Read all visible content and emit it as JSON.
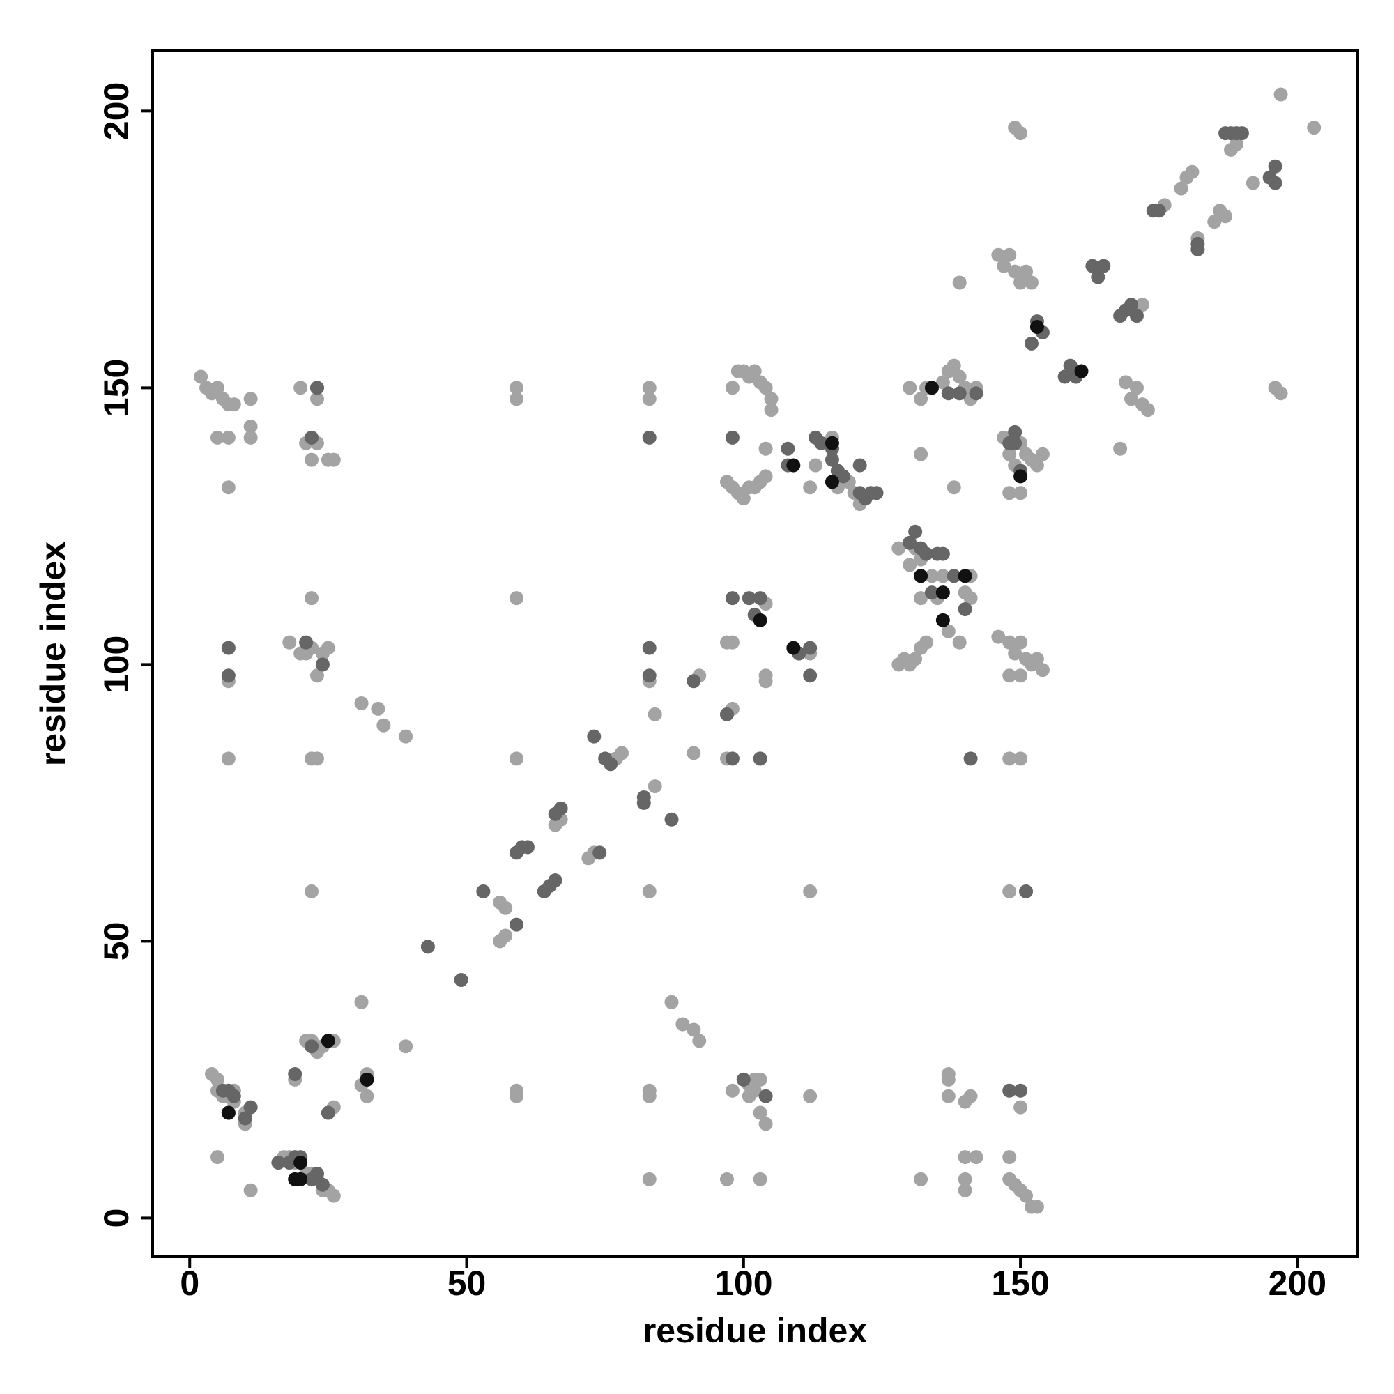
{
  "chart_data": {
    "type": "scatter",
    "x_label": "residue index",
    "y_label": "residue index",
    "xlim": [
      -6.7,
      210.9
    ],
    "ylim": [
      -7,
      211
    ],
    "xticks": [
      0,
      50,
      100,
      150,
      200
    ],
    "yticks": [
      0,
      50,
      100,
      150,
      200
    ],
    "series": [
      {
        "color": "#a3a3a3",
        "x": [
          4,
          5,
          5,
          6,
          7,
          8,
          8,
          10,
          10,
          5,
          11,
          17,
          18,
          19,
          21,
          22,
          23,
          24,
          25,
          26,
          19,
          21,
          22,
          23,
          24,
          26,
          26,
          31,
          32,
          32,
          31,
          39,
          56,
          57,
          56,
          57,
          59,
          59,
          59,
          59,
          59,
          59,
          66,
          67,
          72,
          73,
          77,
          78,
          83,
          83,
          83,
          83,
          83,
          83,
          83,
          84,
          84,
          87,
          89,
          91,
          92,
          91,
          92,
          97,
          98,
          97,
          98,
          98,
          97,
          100,
          101,
          101,
          102,
          102,
          103,
          103,
          104,
          103,
          104,
          104,
          103,
          97,
          98,
          99,
          100,
          101,
          102,
          103,
          104,
          104,
          98,
          99,
          100,
          101,
          102,
          103,
          104,
          105,
          105,
          110,
          112,
          112,
          112,
          112,
          113,
          116,
          117,
          119,
          120,
          121,
          104,
          103,
          128,
          129,
          130,
          131,
          132,
          133,
          132,
          134,
          135,
          136,
          137,
          139,
          140,
          141,
          141,
          128,
          130,
          131,
          132,
          130,
          132,
          132,
          133,
          132,
          140,
          142,
          140,
          140,
          137,
          137,
          137,
          140,
          141,
          138,
          139,
          136,
          137,
          138,
          139,
          140,
          141,
          142,
          147,
          148,
          149,
          150,
          151,
          152,
          153,
          154,
          148,
          150,
          146,
          147,
          148,
          149,
          150,
          151,
          152,
          146,
          148,
          149,
          150,
          151,
          152,
          153,
          154,
          148,
          150,
          148,
          150,
          148,
          148,
          148,
          149,
          150,
          151,
          152,
          153,
          150,
          149,
          150,
          168,
          169,
          170,
          171,
          172,
          173,
          171,
          172,
          179,
          180,
          181,
          176,
          182,
          185,
          186,
          187,
          188,
          189,
          192,
          196,
          197,
          197,
          203,
          158,
          2,
          3,
          4,
          5,
          6,
          7,
          8,
          5,
          7,
          11,
          11,
          11,
          7,
          7,
          7,
          7,
          20,
          21,
          22,
          22,
          18,
          20,
          21,
          22,
          23,
          24,
          25,
          22,
          23,
          25,
          26,
          31,
          34,
          35,
          39,
          22,
          23,
          23,
          23
        ],
        "values": [
          26,
          25,
          23,
          22,
          22,
          23,
          21,
          19,
          17,
          11,
          5,
          11,
          11,
          10,
          8,
          8,
          7,
          5,
          5,
          4,
          25,
          32,
          32,
          30,
          31,
          32,
          20,
          24,
          26,
          22,
          39,
          31,
          57,
          56,
          50,
          51,
          22,
          23,
          83,
          112,
          148,
          150,
          71,
          72,
          65,
          66,
          83,
          84,
          22,
          23,
          7,
          59,
          97,
          148,
          150,
          78,
          91,
          39,
          35,
          34,
          32,
          84,
          98,
          83,
          92,
          104,
          104,
          23,
          7,
          25,
          24,
          22,
          25,
          23,
          19,
          25,
          17,
          7,
          97,
          98,
          108,
          133,
          132,
          131,
          130,
          132,
          132,
          133,
          134,
          139,
          150,
          153,
          153,
          152,
          153,
          151,
          150,
          148,
          146,
          102,
          102,
          59,
          22,
          132,
          136,
          141,
          132,
          133,
          131,
          129,
          111,
          83,
          100,
          101,
          100,
          101,
          103,
          104,
          112,
          116,
          112,
          116,
          106,
          104,
          113,
          112,
          116,
          121,
          118,
          121,
          119,
          150,
          138,
          148,
          150,
          7,
          11,
          11,
          7,
          5,
          26,
          25,
          22,
          21,
          22,
          132,
          169,
          151,
          153,
          154,
          152,
          150,
          148,
          150,
          141,
          138,
          136,
          140,
          138,
          137,
          136,
          138,
          131,
          131,
          174,
          172,
          174,
          171,
          169,
          171,
          169,
          105,
          104,
          102,
          104,
          101,
          100,
          101,
          99,
          98,
          98,
          83,
          83,
          59,
          11,
          7,
          6,
          5,
          4,
          2,
          2,
          20,
          197,
          196,
          139,
          151,
          148,
          150,
          147,
          146,
          164,
          165,
          186,
          188,
          189,
          183,
          177,
          180,
          182,
          181,
          193,
          194,
          187,
          150,
          149,
          203,
          197,
          152,
          152,
          150,
          149,
          150,
          148,
          147,
          147,
          141,
          141,
          148,
          143,
          141,
          132,
          103,
          97,
          83,
          150,
          140,
          137,
          112,
          104,
          102,
          102,
          103,
          98,
          102,
          103,
          83,
          83,
          137,
          137,
          93,
          92,
          89,
          87,
          59,
          150,
          148,
          140
        ]
      },
      {
        "color": "#666666",
        "x": [
          6,
          7,
          8,
          10,
          11,
          7,
          16,
          20,
          22,
          23,
          24,
          25,
          19,
          22,
          25,
          32,
          43,
          49,
          53,
          59,
          59,
          60,
          61,
          64,
          65,
          66,
          66,
          67,
          73,
          74,
          75,
          76,
          82,
          82,
          87,
          91,
          97,
          98,
          98,
          100,
          101,
          102,
          103,
          104,
          103,
          83,
          83,
          83,
          98,
          108,
          108,
          110,
          112,
          112,
          113,
          114,
          116,
          116,
          117,
          118,
          121,
          121,
          122,
          123,
          124,
          130,
          131,
          132,
          133,
          134,
          135,
          136,
          138,
          140,
          141,
          142,
          139,
          148,
          149,
          150,
          148,
          150,
          151,
          152,
          153,
          154,
          158,
          159,
          160,
          163,
          164,
          165,
          168,
          169,
          170,
          171,
          174,
          175,
          182,
          182,
          187,
          188,
          189,
          190,
          195,
          196,
          196,
          18,
          19,
          21,
          24,
          22,
          23,
          7,
          7,
          149,
          137
        ],
        "values": [
          23,
          23,
          22,
          18,
          20,
          19,
          10,
          11,
          7,
          8,
          6,
          19,
          26,
          31,
          32,
          25,
          49,
          43,
          59,
          53,
          66,
          67,
          67,
          59,
          60,
          61,
          73,
          74,
          87,
          66,
          83,
          82,
          76,
          75,
          72,
          97,
          91,
          83,
          112,
          25,
          112,
          109,
          112,
          22,
          83,
          103,
          98,
          141,
          141,
          136,
          139,
          102,
          103,
          98,
          141,
          140,
          139,
          137,
          135,
          134,
          136,
          131,
          130,
          131,
          131,
          122,
          124,
          121,
          120,
          113,
          120,
          120,
          116,
          110,
          83,
          149,
          149,
          140,
          142,
          135,
          23,
          23,
          59,
          158,
          162,
          160,
          152,
          154,
          152,
          172,
          170,
          172,
          163,
          164,
          165,
          163,
          182,
          182,
          175,
          176,
          196,
          196,
          196,
          196,
          188,
          190,
          187,
          10,
          11,
          104,
          100,
          141,
          150,
          98,
          103,
          140,
          149
        ]
      },
      {
        "color": "#111111",
        "x": [
          7,
          19,
          20,
          20,
          25,
          32,
          103,
          109,
          109,
          116,
          116,
          132,
          136,
          136,
          140,
          153,
          161,
          150,
          134
        ],
        "values": [
          19,
          7,
          7,
          10,
          32,
          25,
          108,
          103,
          136,
          140,
          133,
          116,
          108,
          113,
          116,
          161,
          153,
          134,
          150
        ]
      }
    ]
  }
}
